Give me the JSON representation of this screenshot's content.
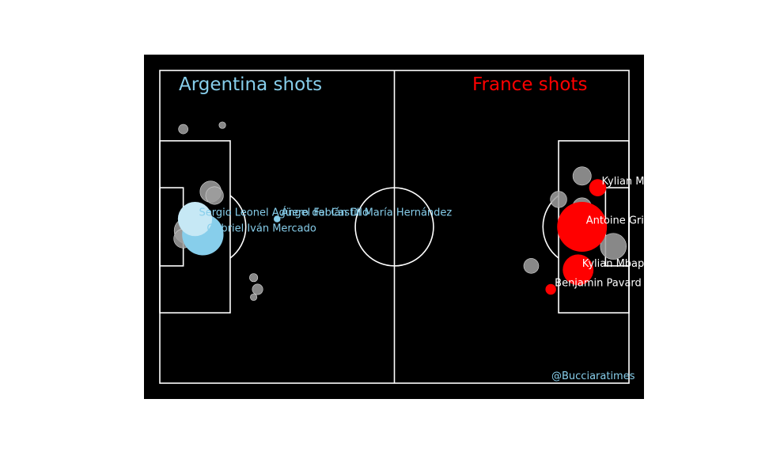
{
  "chart_data": {
    "type": "scatter",
    "pitch": {
      "length": 120,
      "width": 80
    },
    "colors": {
      "background": "#000000",
      "lines": "#ffffff",
      "argentina": "#87ceeb",
      "argentina_light": "#c6e8f5",
      "france": "#ff0000",
      "miss": "#a0a0a0",
      "credit": "#87ceeb"
    },
    "titles": {
      "left": "Argentina shots",
      "right": "France shots"
    },
    "credit": "@Bucciaratimes",
    "series": [
      {
        "name": "Argentina",
        "side": "left",
        "goals": [
          {
            "x": 11,
            "y": 42,
            "xg": 0.76,
            "label": "Gabriel Iván Mercado",
            "color_key": "argentina"
          },
          {
            "x": 9,
            "y": 38,
            "xg": 0.52,
            "label": "Sergio Leonel Agüero del Castillo",
            "color_key": "argentina_light"
          },
          {
            "x": 30,
            "y": 38,
            "xg": 0.02,
            "label": "Ángel Fabián Di María Hernández",
            "color_key": "argentina"
          }
        ],
        "misses": [
          {
            "x": 6,
            "y": 15,
            "xg": 0.04
          },
          {
            "x": 16,
            "y": 14,
            "xg": 0.02
          },
          {
            "x": 13,
            "y": 31,
            "xg": 0.2
          },
          {
            "x": 14,
            "y": 32,
            "xg": 0.14
          },
          {
            "x": 7,
            "y": 41,
            "xg": 0.3
          },
          {
            "x": 6,
            "y": 43,
            "xg": 0.16
          },
          {
            "x": 24,
            "y": 53,
            "xg": 0.03
          },
          {
            "x": 25,
            "y": 56,
            "xg": 0.05
          },
          {
            "x": 24,
            "y": 58,
            "xg": 0.02
          }
        ]
      },
      {
        "name": "France",
        "side": "right",
        "goals": [
          {
            "x": 112,
            "y": 30,
            "xg": 0.13,
            "label": "Kylian Mbappé Lottin",
            "color_key": "france"
          },
          {
            "x": 108,
            "y": 40,
            "xg": 1.1,
            "label": "Antoine Griezmann",
            "color_key": "france"
          },
          {
            "x": 107,
            "y": 51,
            "xg": 0.42,
            "label": "Kylian Mbappé Lottin",
            "color_key": "france"
          },
          {
            "x": 100,
            "y": 56,
            "xg": 0.05,
            "label": "Benjamin Pavard",
            "color_key": "france"
          }
        ],
        "misses": [
          {
            "x": 108,
            "y": 27,
            "xg": 0.15
          },
          {
            "x": 102,
            "y": 33,
            "xg": 0.12
          },
          {
            "x": 108,
            "y": 35,
            "xg": 0.16
          },
          {
            "x": 116,
            "y": 45,
            "xg": 0.3
          },
          {
            "x": 95,
            "y": 50,
            "xg": 0.1
          }
        ]
      }
    ]
  }
}
